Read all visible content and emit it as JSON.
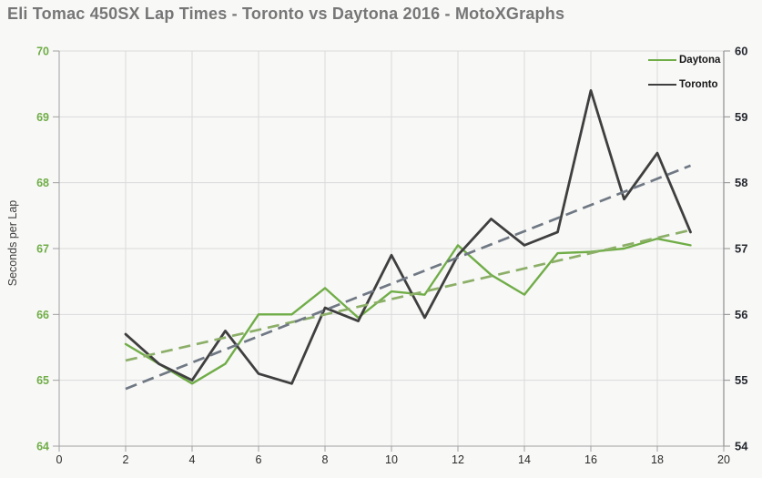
{
  "header": {
    "title": "Eli Tomac 450SX Lap Times - Toronto vs Daytona 2016 - MotoXGraphs"
  },
  "chart_data": {
    "type": "line",
    "title": "Eli Tomac 450SX Lap Times - Toronto vs Daytona 2016 - MotoXGraphs",
    "ylabel": "Seconds per Lap",
    "x": [
      2,
      3,
      4,
      5,
      6,
      7,
      8,
      9,
      10,
      11,
      12,
      13,
      14,
      15,
      16,
      17,
      18,
      19
    ],
    "series": [
      {
        "name": "Daytona",
        "color": "#70ad47",
        "width": 2.4,
        "values": [
          65.55,
          65.25,
          64.95,
          65.25,
          66.0,
          66.0,
          66.4,
          65.95,
          66.35,
          66.3,
          67.05,
          66.6,
          66.3,
          66.93,
          66.95,
          67.0,
          67.15,
          67.05
        ]
      },
      {
        "name": "Toronto",
        "color": "#3f3f3f",
        "width": 2.8,
        "values": [
          65.7,
          65.25,
          65.0,
          65.75,
          65.1,
          64.95,
          66.1,
          65.9,
          66.9,
          65.95,
          66.9,
          67.45,
          67.05,
          67.25,
          69.4,
          67.75,
          68.45,
          67.25
        ]
      }
    ],
    "trendlines": [
      {
        "name": "Daytona trend",
        "color": "#8caf68",
        "x_start": 2,
        "y_start": 65.3,
        "x_end": 19,
        "y_end": 67.28
      },
      {
        "name": "Toronto trend",
        "color": "#6f7883",
        "x_start": 2,
        "y_start": 64.87,
        "x_end": 19,
        "y_end": 68.26
      }
    ],
    "left_axis": {
      "min": 64,
      "max": 70,
      "ticks": [
        70,
        69,
        68,
        67,
        66,
        65,
        64
      ],
      "color": "#70ad47"
    },
    "right_axis": {
      "min": 54,
      "max": 60,
      "ticks": [
        60,
        59,
        58,
        57,
        56,
        55,
        54
      ],
      "color": "#24282e"
    },
    "x_axis": {
      "min": 0,
      "max": 20,
      "ticks": [
        0,
        2,
        4,
        6,
        8,
        10,
        12,
        14,
        16,
        18,
        20
      ],
      "color": "#2b2b2b"
    },
    "legend": {
      "position": "top-right",
      "entries": [
        {
          "label": "Daytona",
          "color": "#70ad47"
        },
        {
          "label": "Toronto",
          "color": "#3f3f3f"
        }
      ]
    },
    "grid": true,
    "gridline_color": "#dadada",
    "axis_line_color": "#a0a0a0"
  }
}
